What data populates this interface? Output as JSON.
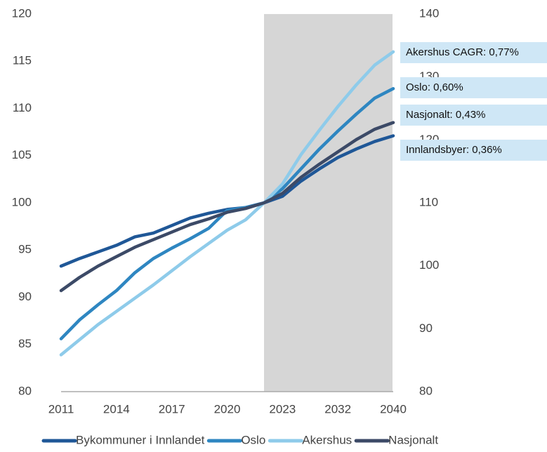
{
  "chart_data": {
    "type": "line",
    "categories": [
      "2011",
      null,
      null,
      "2014",
      null,
      null,
      "2017",
      null,
      null,
      "2020",
      null,
      null,
      "2023",
      null,
      null,
      "2032",
      null,
      null,
      "2040"
    ],
    "series": [
      {
        "name": "Bykommuner i Innlandet",
        "color": "#1f5797",
        "values": [
          93.3,
          94.1,
          94.8,
          95.5,
          96.4,
          96.8,
          97.6,
          98.4,
          98.9,
          99.3,
          99.5,
          100,
          100.7,
          102.3,
          103.6,
          104.8,
          105.7,
          106.5,
          107.1
        ]
      },
      {
        "name": "Oslo",
        "color": "#2e86c1",
        "values": [
          85.6,
          87.6,
          89.2,
          90.7,
          92.6,
          94.1,
          95.2,
          96.2,
          97.3,
          99.2,
          99.5,
          100,
          101.5,
          103.6,
          105.7,
          107.6,
          109.4,
          111.1,
          112.1
        ]
      },
      {
        "name": "Akershus",
        "color": "#8ecbea",
        "values": [
          83.9,
          85.5,
          87.1,
          88.5,
          89.9,
          91.3,
          92.8,
          94.3,
          95.7,
          97.1,
          98.2,
          100,
          102,
          105.1,
          107.7,
          110.2,
          112.5,
          114.6,
          116
        ]
      },
      {
        "name": "Nasjonalt",
        "color": "#3c4a67",
        "values": [
          90.7,
          92.1,
          93.3,
          94.3,
          95.3,
          96.1,
          96.9,
          97.7,
          98.3,
          99.0,
          99.4,
          100,
          101.0,
          102.7,
          104.1,
          105.4,
          106.7,
          107.8,
          108.5
        ]
      }
    ],
    "ylim": [
      80,
      120
    ],
    "yticks": [
      80,
      85,
      90,
      95,
      100,
      105,
      110,
      115,
      120
    ],
    "y2lim": [
      80,
      140
    ],
    "y2ticks": [
      80,
      90,
      100,
      110,
      120,
      130,
      140
    ],
    "annotations": [
      "Akershus CAGR: 0,77%",
      "Oslo: 0,60%",
      "Nasjonalt: 0,43%",
      "Innlandsbyer: 0,36%"
    ],
    "legend": "bottom"
  }
}
